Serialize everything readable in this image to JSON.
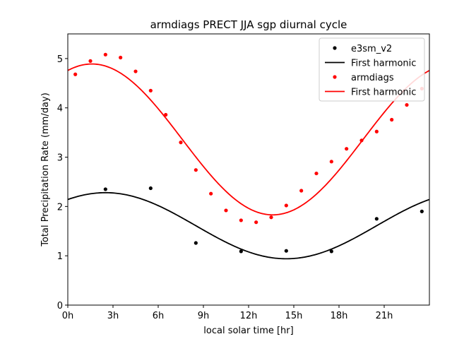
{
  "chart_data": {
    "type": "scatter",
    "title": "armdiags PRECT JJA sgp diurnal cycle",
    "xlabel": "local solar time [hr]",
    "ylabel": "Total Precipitation Rate (mm/day)",
    "xlim": [
      0,
      24
    ],
    "ylim": [
      0,
      5.5
    ],
    "x_ticks": [
      0,
      3,
      6,
      9,
      12,
      15,
      18,
      21
    ],
    "x_tick_labels": [
      "0h",
      "3h",
      "6h",
      "9h",
      "12h",
      "15h",
      "18h",
      "21h"
    ],
    "y_ticks": [
      0,
      1,
      2,
      3,
      4,
      5
    ],
    "y_tick_labels": [
      "0",
      "1",
      "2",
      "3",
      "4",
      "5"
    ],
    "grid": false,
    "legend_position": "top-right",
    "legend": [
      {
        "label": "e3sm_v2",
        "marker": "dot",
        "color": "#000000"
      },
      {
        "label": "First harmonic",
        "marker": "line",
        "color": "#000000"
      },
      {
        "label": "armdiags",
        "marker": "dot",
        "color": "#ff0000"
      },
      {
        "label": "First harmonic",
        "marker": "line",
        "color": "#ff0000"
      }
    ],
    "series": [
      {
        "name": "e3sm_v2",
        "kind": "points",
        "color": "#000000",
        "x": [
          2.5,
          5.5,
          8.5,
          11.5,
          14.5,
          17.5,
          20.5,
          23.5
        ],
        "y": [
          2.35,
          2.37,
          1.26,
          1.09,
          1.1,
          1.09,
          1.75,
          1.9
        ]
      },
      {
        "name": "First harmonic",
        "kind": "harmonic",
        "color": "#000000",
        "mean": 1.61,
        "amplitude": 0.67,
        "peak_hour": 2.5
      },
      {
        "name": "armdiags",
        "kind": "points",
        "color": "#ff0000",
        "x": [
          0.5,
          1.5,
          2.5,
          3.5,
          4.5,
          5.5,
          6.5,
          7.5,
          8.5,
          9.5,
          10.5,
          11.5,
          12.5,
          13.5,
          14.5,
          15.5,
          16.5,
          17.5,
          18.5,
          19.5,
          20.5,
          21.5,
          22.5,
          23.5
        ],
        "y": [
          4.68,
          4.95,
          5.08,
          5.02,
          4.74,
          4.35,
          3.86,
          3.3,
          2.74,
          2.26,
          1.92,
          1.72,
          1.68,
          1.78,
          2.02,
          2.32,
          2.67,
          2.91,
          3.17,
          3.34,
          3.52,
          3.76,
          4.06,
          4.39
        ]
      },
      {
        "name": "First harmonic",
        "kind": "harmonic",
        "color": "#ff0000",
        "mean": 3.36,
        "amplitude": 1.53,
        "peak_hour": 1.6
      }
    ]
  }
}
